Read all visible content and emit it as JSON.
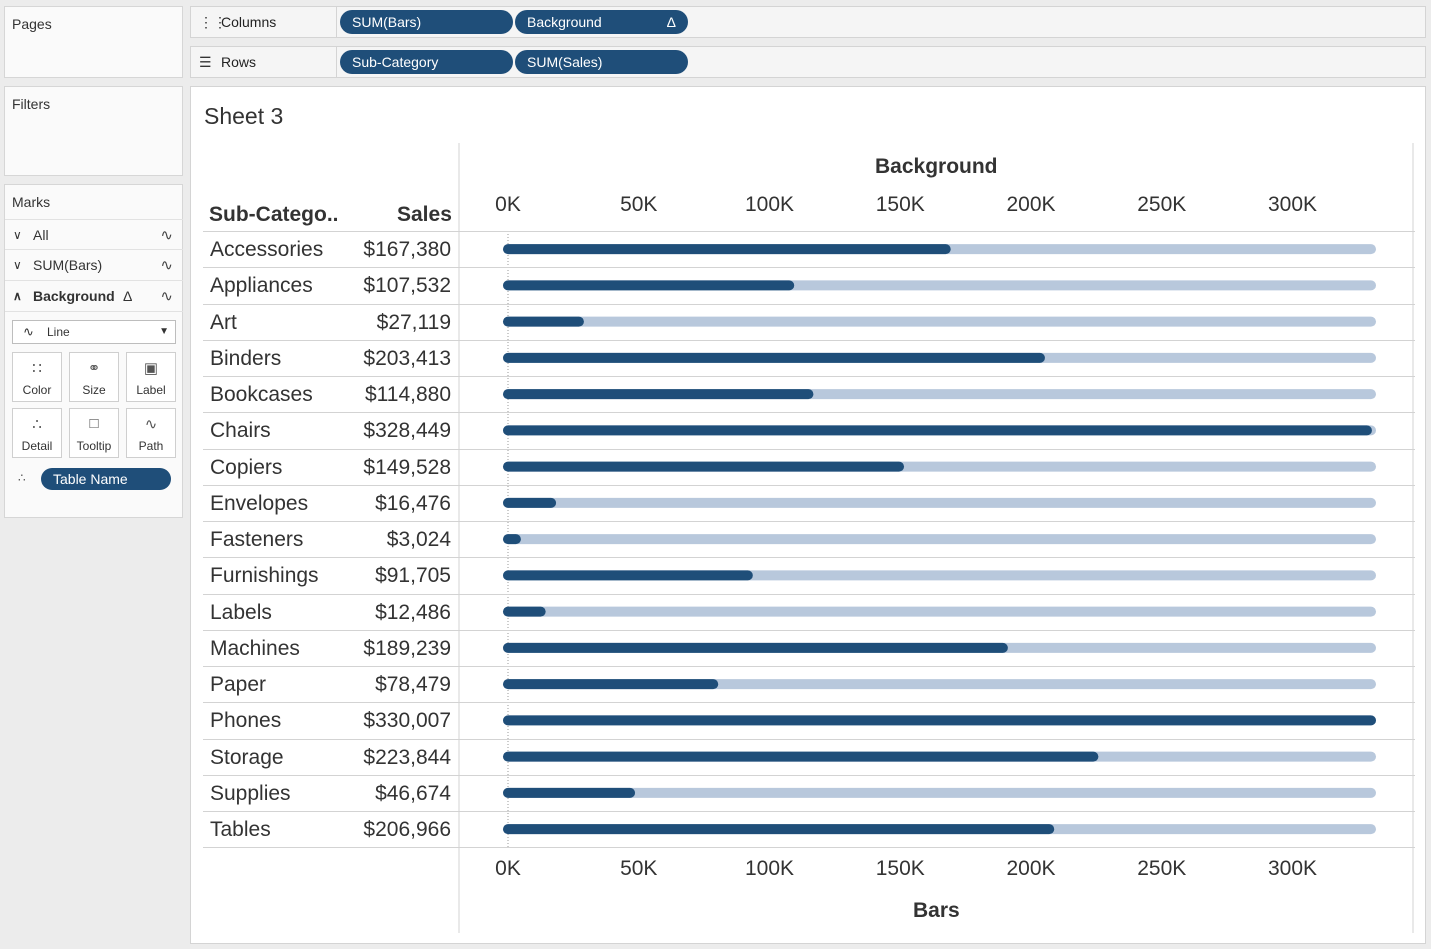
{
  "left_panels": {
    "pages_label": "Pages",
    "filters_label": "Filters",
    "marks_label": "Marks"
  },
  "marks": {
    "rows": [
      {
        "label": "All",
        "chevron": "down-chevron-icon",
        "bold": false
      },
      {
        "label": "SUM(Bars)",
        "chevron": "down-chevron-icon",
        "bold": false
      },
      {
        "label": "Background",
        "chevron": "up-chevron-icon",
        "bold": true,
        "delta": "Δ"
      }
    ],
    "mark_type": "Line",
    "buttons": [
      {
        "label": "Color",
        "icon": "color-dots-icon"
      },
      {
        "label": "Size",
        "icon": "size-icon"
      },
      {
        "label": "Label",
        "icon": "label-icon"
      },
      {
        "label": "Detail",
        "icon": "detail-dots-icon"
      },
      {
        "label": "Tooltip",
        "icon": "tooltip-icon"
      },
      {
        "label": "Path",
        "icon": "path-icon"
      }
    ],
    "detail_pill": "Table Name"
  },
  "shelves": {
    "columns": {
      "label": "Columns",
      "pills": [
        "SUM(Bars)",
        "Background"
      ],
      "delta": "Δ"
    },
    "rows": {
      "label": "Rows",
      "pills": [
        "Sub-Category",
        "SUM(Sales)"
      ]
    }
  },
  "sheet": {
    "title": "Sheet 3",
    "header_category": "Sub-Catego..",
    "header_sales": "Sales"
  },
  "colors": {
    "bar": "#1f4e79",
    "background_bar": "#b8c8dc",
    "pill": "#1f4e79"
  },
  "chart_data": {
    "type": "bar",
    "top_axis_title": "Background",
    "bottom_axis_title": "Bars",
    "xlim": [
      0,
      330007
    ],
    "ticks": [
      0,
      50000,
      100000,
      150000,
      200000,
      250000,
      300000
    ],
    "tick_labels": [
      "0K",
      "50K",
      "100K",
      "150K",
      "200K",
      "250K",
      "300K"
    ],
    "background_value": 330007,
    "grid": false,
    "categories": [
      "Accessories",
      "Appliances",
      "Art",
      "Binders",
      "Bookcases",
      "Chairs",
      "Copiers",
      "Envelopes",
      "Fasteners",
      "Furnishings",
      "Labels",
      "Machines",
      "Paper",
      "Phones",
      "Storage",
      "Supplies",
      "Tables"
    ],
    "sales_labels": [
      "$167,380",
      "$107,532",
      "$27,119",
      "$203,413",
      "$114,880",
      "$328,449",
      "$149,528",
      "$16,476",
      "$3,024",
      "$91,705",
      "$12,486",
      "$189,239",
      "$78,479",
      "$330,007",
      "$223,844",
      "$46,674",
      "$206,966"
    ],
    "values": [
      167380,
      107532,
      27119,
      203413,
      114880,
      328449,
      149528,
      16476,
      3024,
      91705,
      12486,
      189239,
      78479,
      330007,
      223844,
      46674,
      206966
    ]
  }
}
